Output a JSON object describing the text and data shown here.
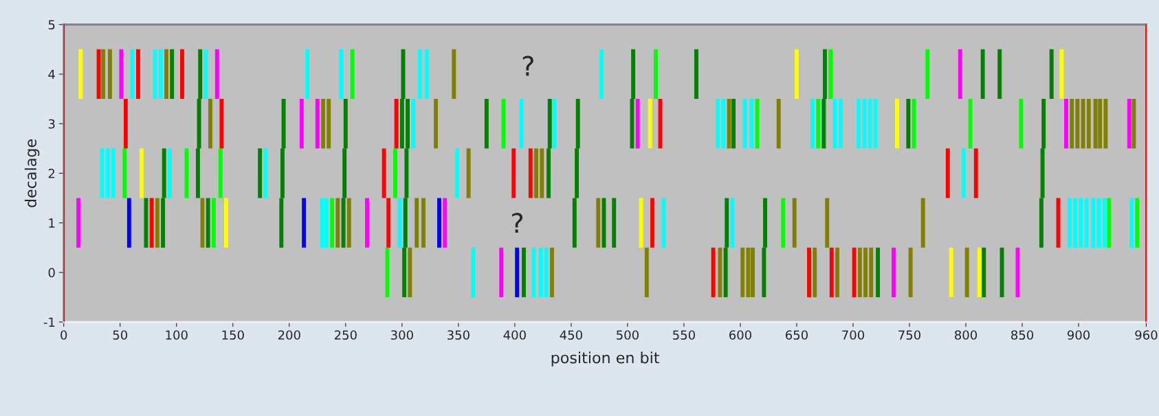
{
  "chart_data": {
    "type": "bar",
    "xlabel": "position en bit",
    "ylabel": "decalage",
    "xlim": [
      0,
      960
    ],
    "xticks": [
      0,
      50,
      100,
      150,
      200,
      250,
      300,
      350,
      400,
      450,
      500,
      550,
      600,
      650,
      700,
      750,
      800,
      850,
      900,
      960
    ],
    "ylim": [
      -1,
      5
    ],
    "yticks": [
      -1,
      0,
      1,
      2,
      3,
      4,
      5
    ],
    "grid": false,
    "ref_lines": [
      {
        "axis": "x",
        "value": 0,
        "color": "#ff0000"
      },
      {
        "axis": "x",
        "value": 960,
        "color": "#ff0000"
      }
    ],
    "annotations": [
      "?",
      "?"
    ],
    "x": [
      13,
      15,
      31,
      34,
      35,
      39,
      41,
      44,
      51,
      54,
      55,
      58,
      61,
      66,
      69,
      73,
      78,
      81,
      83,
      86,
      88,
      89,
      91,
      94,
      96,
      105,
      109,
      119,
      120,
      121,
      123,
      126,
      128,
      130,
      133,
      136,
      139,
      140,
      144,
      174,
      179,
      193,
      194,
      195,
      211,
      213,
      216,
      225,
      229,
      230,
      233,
      235,
      238,
      243,
      246,
      248,
      249,
      250,
      253,
      256,
      269,
      284,
      287,
      288,
      294,
      295,
      298,
      300,
      301,
      302,
      303,
      304,
      305,
      307,
      310,
      313,
      316,
      319,
      322,
      330,
      333,
      338,
      346,
      349,
      359,
      363,
      375,
      388,
      390,
      399,
      402,
      406,
      408,
      414,
      417,
      419,
      423,
      424,
      428,
      430,
      431,
      433,
      435,
      453,
      455,
      456,
      474,
      477,
      479,
      488,
      504,
      505,
      509,
      512,
      517,
      520,
      522,
      525,
      529,
      532,
      561,
      576,
      580,
      582,
      585,
      587,
      588,
      590,
      593,
      594,
      602,
      604,
      607,
      610,
      611,
      615,
      621,
      622,
      634,
      638,
      648,
      650,
      661,
      664,
      666,
      669,
      674,
      675,
      677,
      680,
      681,
      684,
      686,
      689,
      701,
      705,
      706,
      710,
      711,
      715,
      716,
      720,
      722,
      736,
      739,
      749,
      751,
      754,
      762,
      766,
      784,
      787,
      795,
      798,
      801,
      804,
      809,
      812,
      815,
      816,
      830,
      832,
      846,
      849,
      867,
      868,
      869,
      876,
      882,
      885,
      889,
      892,
      894,
      897,
      899,
      902,
      904,
      907,
      909,
      913,
      915,
      918,
      919,
      923,
      924,
      927,
      945,
      947,
      949,
      952
    ],
    "base": [
      0.5,
      3.5,
      3.5,
      1.5,
      3.5,
      1.5,
      3.5,
      1.5,
      3.5,
      1.5,
      2.5,
      0.5,
      3.5,
      3.5,
      1.5,
      0.5,
      0.5,
      3.5,
      0.5,
      3.5,
      0.5,
      1.5,
      3.5,
      1.5,
      3.5,
      3.5,
      1.5,
      1.5,
      2.5,
      3.5,
      0.5,
      3.5,
      0.5,
      2.5,
      0.5,
      3.5,
      1.5,
      2.5,
      0.5,
      1.5,
      1.5,
      0.5,
      1.5,
      2.5,
      2.5,
      0.5,
      3.5,
      2.5,
      0.5,
      2.5,
      0.5,
      2.5,
      0.5,
      0.5,
      3.5,
      0.5,
      1.5,
      2.5,
      0.5,
      3.5,
      0.5,
      1.5,
      -0.5,
      0.5,
      1.5,
      2.5,
      0.5,
      2.5,
      3.5,
      -0.5,
      0.5,
      1.5,
      2.5,
      -0.5,
      2.5,
      0.5,
      3.5,
      0.5,
      3.5,
      2.5,
      0.5,
      0.5,
      3.5,
      1.5,
      1.5,
      -0.5,
      2.5,
      -0.5,
      2.5,
      1.5,
      -0.5,
      2.5,
      -0.5,
      1.5,
      -0.5,
      1.5,
      -0.5,
      1.5,
      -0.5,
      1.5,
      2.5,
      -0.5,
      2.5,
      0.5,
      1.5,
      2.5,
      0.5,
      3.5,
      0.5,
      0.5,
      2.5,
      3.5,
      2.5,
      0.5,
      -0.5,
      2.5,
      0.5,
      3.5,
      2.5,
      0.5,
      3.5,
      -0.5,
      2.5,
      -0.5,
      2.5,
      -0.5,
      0.5,
      2.5,
      0.5,
      2.5,
      -0.5,
      2.5,
      -0.5,
      2.5,
      -0.5,
      2.5,
      -0.5,
      0.5,
      2.5,
      0.5,
      0.5,
      3.5,
      -0.5,
      2.5,
      -0.5,
      2.5,
      2.5,
      3.5,
      0.5,
      3.5,
      -0.5,
      2.5,
      -0.5,
      2.5,
      -0.5,
      2.5,
      -0.5,
      2.5,
      -0.5,
      2.5,
      -0.5,
      2.5,
      -0.5,
      -0.5,
      2.5,
      2.5,
      -0.5,
      2.5,
      0.5,
      3.5,
      1.5,
      -0.5,
      3.5,
      1.5,
      -0.5,
      2.5,
      1.5,
      -0.5,
      3.5,
      -0.5,
      3.5,
      -0.5,
      -0.5,
      2.5,
      0.5,
      1.5,
      2.5,
      3.5,
      0.5,
      3.5,
      2.5,
      0.5,
      2.5,
      0.5,
      2.5,
      0.5,
      2.5,
      0.5,
      2.5,
      0.5,
      2.5,
      0.5,
      2.5,
      0.5,
      2.5,
      0.5,
      2.5,
      0.5,
      2.5,
      0.5
    ],
    "values": [
      1,
      1,
      1,
      1,
      1,
      1,
      1,
      1,
      1,
      1,
      1,
      1,
      1,
      1,
      1,
      1,
      1,
      1,
      1,
      1,
      1,
      1,
      1,
      1,
      1,
      1,
      1,
      1,
      1,
      1,
      1,
      1,
      1,
      1,
      1,
      1,
      1,
      1,
      1,
      1,
      1,
      1,
      1,
      1,
      1,
      1,
      1,
      1,
      1,
      1,
      1,
      1,
      1,
      1,
      1,
      1,
      1,
      1,
      1,
      1,
      1,
      1,
      1,
      1,
      1,
      1,
      1,
      1,
      1,
      1,
      1,
      1,
      1,
      1,
      1,
      1,
      1,
      1,
      1,
      1,
      1,
      1,
      1,
      1,
      1,
      1,
      1,
      1,
      1,
      1,
      1,
      1,
      1,
      1,
      1,
      1,
      1,
      1,
      1,
      1,
      1,
      1,
      1,
      1,
      1,
      1,
      1,
      1,
      1,
      1,
      1,
      1,
      1,
      1,
      1,
      1,
      1,
      1,
      1,
      1,
      1,
      1,
      1,
      1,
      1,
      1,
      1,
      1,
      1,
      1,
      1,
      1,
      1,
      1,
      1,
      1,
      1,
      1,
      1,
      1,
      1,
      1,
      1,
      1,
      1,
      1,
      1,
      1,
      1,
      1,
      1,
      1,
      1,
      1,
      1,
      1,
      1,
      1,
      1,
      1,
      1,
      1,
      1,
      1,
      1,
      1,
      1,
      1,
      1,
      1,
      1,
      1,
      1,
      1,
      1,
      1,
      1,
      1,
      1,
      1,
      1,
      1,
      1,
      1,
      1,
      1,
      1,
      1,
      1,
      1,
      1,
      1,
      1,
      1,
      1,
      1,
      1,
      1,
      1,
      1,
      1,
      1,
      1,
      1,
      1,
      1,
      1,
      1,
      1,
      1
    ],
    "colors": [
      "#ff00ff",
      "#ffff00",
      "#ff0000",
      "#00ffff",
      "#808000",
      "#00ffff",
      "#808000",
      "#00ffff",
      "#ff00ff",
      "#00ff00",
      "#ff0000",
      "#0000ff",
      "#00ffff",
      "#ff0000",
      "#ffff00",
      "#008000",
      "#ff0000",
      "#00ffff",
      "#808000",
      "#00ffff",
      "#008000",
      "#008000",
      "#808000",
      "#00ffff",
      "#008000",
      "#ff0000",
      "#00ff00",
      "#008000",
      "#008000",
      "#008000",
      "#808000",
      "#00ffff",
      "#008000",
      "#808000",
      "#00ff00",
      "#ff00ff",
      "#00ff00",
      "#ff0000",
      "#ffff00",
      "#008000",
      "#00ffff",
      "#008000",
      "#008000",
      "#008000",
      "#ff00ff",
      "#0000ff",
      "#00ffff",
      "#ff00ff",
      "#00ffff",
      "#808000",
      "#00ffff",
      "#808000",
      "#00ff00",
      "#808000",
      "#00ffff",
      "#008000",
      "#008000",
      "#008000",
      "#808000",
      "#00ff00",
      "#ff00ff",
      "#ff0000",
      "#00ff00",
      "#ff0000",
      "#00ff00",
      "#ff0000",
      "#00ffff",
      "#008000",
      "#008000",
      "#008000",
      "#008000",
      "#008000",
      "#008000",
      "#808000",
      "#00ffff",
      "#808000",
      "#00ffff",
      "#808000",
      "#00ffff",
      "#808000",
      "#0000ff",
      "#ff00ff",
      "#808000",
      "#00ffff",
      "#808000",
      "#00ffff",
      "#008000",
      "#ff00ff",
      "#00ff00",
      "#ff0000",
      "#0000ff",
      "#00ffff",
      "#008000",
      "#ff0000",
      "#00ffff",
      "#808000",
      "#00ffff",
      "#808000",
      "#00ffff",
      "#008000",
      "#008000",
      "#808000",
      "#00ffff",
      "#008000",
      "#008000",
      "#008000",
      "#808000",
      "#00ffff",
      "#008000",
      "#008000",
      "#008000",
      "#008000",
      "#ff00ff",
      "#ffff00",
      "#808000",
      "#ffff00",
      "#ff0000",
      "#00ff00",
      "#ff0000",
      "#00ffff",
      "#008000",
      "#ff0000",
      "#00ffff",
      "#808000",
      "#00ffff",
      "#008000",
      "#008000",
      "#808000",
      "#00ffff",
      "#008000",
      "#808000",
      "#00ffff",
      "#808000",
      "#00ffff",
      "#808000",
      "#00ff00",
      "#008000",
      "#008000",
      "#808000",
      "#00ff00",
      "#808000",
      "#ffff00",
      "#ff0000",
      "#00ffff",
      "#808000",
      "#00ff00",
      "#008000",
      "#008000",
      "#808000",
      "#00ff00",
      "#ff0000",
      "#00ffff",
      "#808000",
      "#00ffff",
      "#ff0000",
      "#00ffff",
      "#808000",
      "#00ffff",
      "#808000",
      "#00ffff",
      "#808000",
      "#00ffff",
      "#008000",
      "#ff00ff",
      "#ffff00",
      "#008000",
      "#808000",
      "#00ff00",
      "#808000",
      "#00ff00",
      "#ff0000",
      "#ffff00",
      "#ff00ff",
      "#00ffff",
      "#808000",
      "#00ff00",
      "#ff0000",
      "#ffff00",
      "#008000",
      "#008000",
      "#008000",
      "#008000",
      "#ff00ff",
      "#00ff00",
      "#008000",
      "#008000",
      "#008000",
      "#008000",
      "#ff0000",
      "#ffff00",
      "#ff00ff",
      "#00ffff",
      "#808000",
      "#00ffff",
      "#808000",
      "#00ffff",
      "#808000",
      "#00ffff",
      "#808000",
      "#00ffff",
      "#808000",
      "#00ffff",
      "#808000",
      "#00ffff",
      "#808000",
      "#00ff00",
      "#ff00ff",
      "#00ffff",
      "#808000",
      "#00ff00"
    ]
  }
}
